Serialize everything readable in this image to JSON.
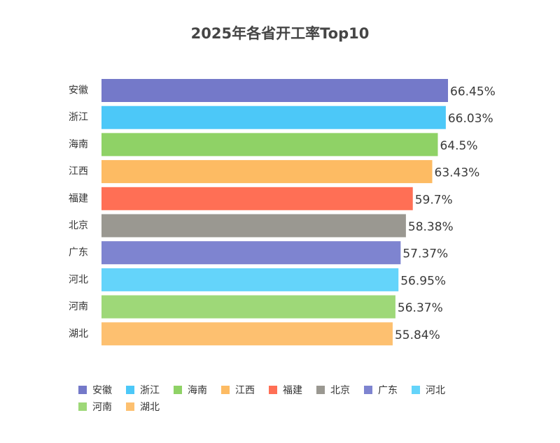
{
  "chart_data": {
    "type": "bar",
    "orientation": "horizontal",
    "title": "2025年各省开工率Top10",
    "categories": [
      "安徽",
      "浙江",
      "海南",
      "江西",
      "福建",
      "北京",
      "广东",
      "河北",
      "河南",
      "湖北"
    ],
    "values": [
      66.45,
      66.03,
      64.5,
      63.43,
      59.7,
      58.38,
      57.37,
      56.95,
      56.37,
      55.84
    ],
    "value_labels": [
      "66.45%",
      "66.03%",
      "64.5%",
      "63.43%",
      "59.7%",
      "58.38%",
      "57.37%",
      "56.95%",
      "56.37%",
      "55.84%"
    ],
    "colors": [
      "#7479c9",
      "#4cc8f8",
      "#8fd266",
      "#fdbb63",
      "#ff6f55",
      "#9a9891",
      "#7e84d0",
      "#64d4fa",
      "#9ed878",
      "#fdc070"
    ],
    "xlim": [
      0,
      66.45
    ],
    "grid": false,
    "legend_position": "bottom-left"
  }
}
